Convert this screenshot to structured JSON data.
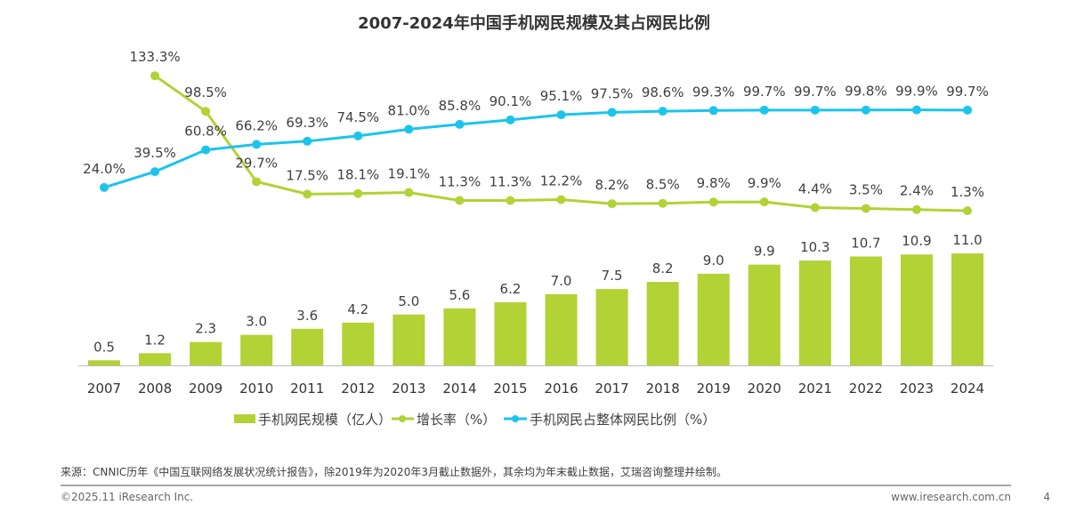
{
  "chart_data": {
    "type": "bar+line",
    "title": "2007-2024年中国手机网民规模及其占网民比例",
    "categories": [
      "2007",
      "2008",
      "2009",
      "2010",
      "2011",
      "2012",
      "2013",
      "2014",
      "2015",
      "2016",
      "2017",
      "2018",
      "2019",
      "2020",
      "2021",
      "2022",
      "2023",
      "2024"
    ],
    "series": [
      {
        "name": "手机网民规模（亿人）",
        "type": "bar",
        "color": "#b2d235",
        "values": [
          0.5,
          1.2,
          2.3,
          3.0,
          3.6,
          4.2,
          5.0,
          5.6,
          6.2,
          7.0,
          7.5,
          8.2,
          9.0,
          9.9,
          10.3,
          10.7,
          10.9,
          11.0
        ],
        "labels": [
          "0.5",
          "1.2",
          "2.3",
          "3.0",
          "3.6",
          "4.2",
          "5.0",
          "5.6",
          "6.2",
          "7.0",
          "7.5",
          "8.2",
          "9.0",
          "9.9",
          "10.3",
          "10.7",
          "10.9",
          "11.0"
        ]
      },
      {
        "name": "增长率（%）",
        "type": "line",
        "color": "#b2d235",
        "values": [
          null,
          133.3,
          98.5,
          29.7,
          17.5,
          18.1,
          19.1,
          11.3,
          11.3,
          12.2,
          8.2,
          8.5,
          9.8,
          9.9,
          4.4,
          3.5,
          2.4,
          1.3
        ],
        "labels": [
          null,
          "133.3%",
          "98.5%",
          "29.7%",
          "17.5%",
          "18.1%",
          "19.1%",
          "11.3%",
          "11.3%",
          "12.2%",
          "8.2%",
          "8.5%",
          "9.8%",
          "9.9%",
          "4.4%",
          "3.5%",
          "2.4%",
          "1.3%"
        ]
      },
      {
        "name": "手机网民占整体网民比例（%）",
        "type": "line",
        "color": "#1cc4ec",
        "values": [
          24.0,
          39.5,
          60.8,
          66.2,
          69.3,
          74.5,
          81.0,
          85.8,
          90.1,
          95.1,
          97.5,
          98.6,
          99.3,
          99.7,
          99.7,
          99.8,
          99.9,
          99.7
        ],
        "labels": [
          "24.0%",
          "39.5%",
          "60.8%",
          "66.2%",
          "69.3%",
          "74.5%",
          "81.0%",
          "85.8%",
          "90.1%",
          "95.1%",
          "97.5%",
          "98.6%",
          "99.3%",
          "99.7%",
          "99.7%",
          "99.8%",
          "99.9%",
          "99.7%"
        ]
      }
    ],
    "legend": "bottom",
    "grid": false
  },
  "source": "来源：CNNIC历年《中国互联网络发展状况统计报告》，除2019年为2020年3月截止数据外，其余均为年末截止数据，艾瑞咨询整理并绘制。",
  "footer": {
    "copyright": "©2025.11 iResearch Inc.",
    "website": "www.iresearch.com.cn",
    "page": "4"
  }
}
